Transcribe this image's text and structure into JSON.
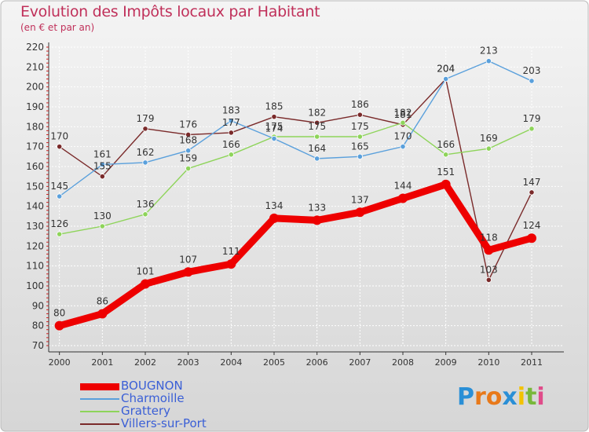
{
  "title": "Evolution des Impôts locaux par Habitant",
  "subtitle": "(en € et par an)",
  "brand": {
    "letters": [
      "P",
      "r",
      "o",
      "x",
      "i",
      "t",
      "i"
    ],
    "colors": [
      "#2a8fd6",
      "#e8791a",
      "#e8791a",
      "#2a8fd6",
      "#f3c200",
      "#78b83a",
      "#e04c8a"
    ]
  },
  "chart_data": {
    "type": "line",
    "title": "Evolution des Impôts locaux par Habitant",
    "subtitle": "(en € et par an)",
    "x": [
      "2000",
      "2001",
      "2002",
      "2003",
      "2004",
      "2005",
      "2006",
      "2007",
      "2008",
      "2009",
      "2010",
      "2011"
    ],
    "ylim": [
      70,
      220
    ],
    "yticks": [
      "70",
      "80",
      "90",
      "100",
      "110",
      "120",
      "130",
      "140",
      "150",
      "160",
      "170",
      "180",
      "190",
      "200",
      "210",
      "220"
    ],
    "grid": true,
    "legend_position": "bottom-left",
    "series": [
      {
        "name": "BOUGNON",
        "color": "#ee0000",
        "values": [
          80,
          86,
          101,
          107,
          111,
          134,
          133,
          137,
          144,
          151,
          118,
          124
        ]
      },
      {
        "name": "Charmoille",
        "color": "#5aa0dc",
        "values": [
          145,
          161,
          162,
          168,
          183,
          174,
          164,
          165,
          170,
          204,
          213,
          203
        ]
      },
      {
        "name": "Grattery",
        "color": "#8ed45a",
        "values": [
          126,
          130,
          136,
          159,
          166,
          175,
          175,
          175,
          182,
          166,
          169,
          179
        ]
      },
      {
        "name": "Villers-sur-Port",
        "color": "#7a2a2a",
        "values": [
          170,
          155,
          179,
          176,
          177,
          185,
          182,
          186,
          181,
          204,
          103,
          147
        ]
      }
    ]
  }
}
